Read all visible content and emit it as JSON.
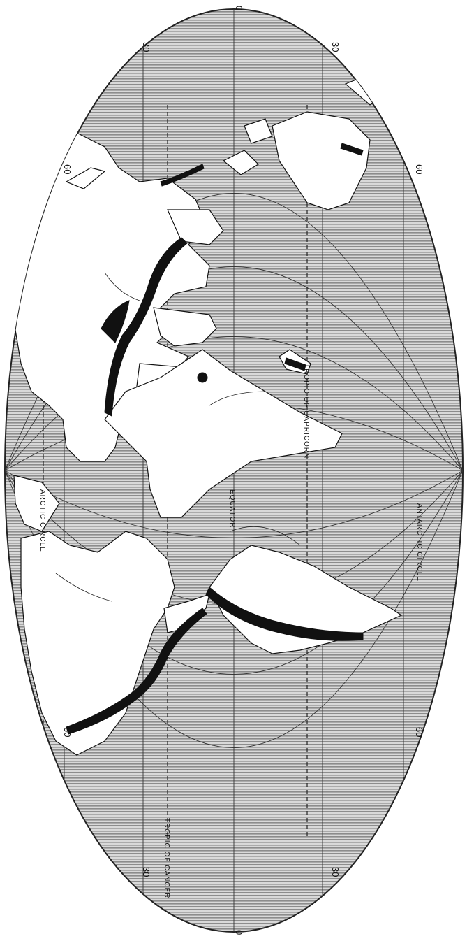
{
  "degree_labels": {
    "top_left_60": "60",
    "top_left_30": "30",
    "top_center_0": "0",
    "top_right_30": "30",
    "top_right_60": "60",
    "bottom_left_60": "60",
    "bottom_left_30": "30",
    "bottom_center_0": "0",
    "bottom_right_30": "30",
    "bottom_right_60": "60"
  },
  "circle_labels": {
    "arctic": "ARCTIC CIRCLE",
    "cancer": "TROPIC OF CANCER",
    "equator": "EQUATOR",
    "capricorn": "TROPIC OF CAPRICORN",
    "antarctic": "ANTARCTIC CIRCLE"
  },
  "colors": {
    "ocean_hatch": "#9a9a9a",
    "land": "#ffffff",
    "mountains": "#111111",
    "outline": "#111111"
  }
}
